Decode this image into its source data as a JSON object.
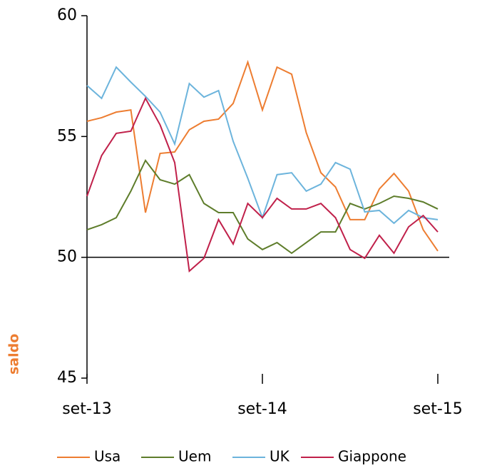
{
  "chart_data": {
    "type": "line",
    "ylabel": "saldo",
    "categories": [
      "set-13",
      null,
      null,
      null,
      null,
      null,
      null,
      null,
      null,
      null,
      null,
      null,
      "set-14",
      null,
      null,
      null,
      null,
      null,
      null,
      null,
      null,
      null,
      null,
      null,
      "set-15"
    ],
    "series": [
      {
        "name": "Usa",
        "color": "#ed7d31",
        "values": [
          55.63,
          55.78,
          56.01,
          56.1,
          51.85,
          54.3,
          54.36,
          55.28,
          55.63,
          55.72,
          56.37,
          58.08,
          56.1,
          57.87,
          57.58,
          55.16,
          53.5,
          52.91,
          51.56,
          51.56,
          52.83,
          53.47,
          52.74,
          51.14,
          50.26
        ]
      },
      {
        "name": "Uem",
        "color": "#5e7d2b",
        "values": [
          51.14,
          51.35,
          51.64,
          52.74,
          54.01,
          53.21,
          53.03,
          53.42,
          52.23,
          51.85,
          51.85,
          50.76,
          50.32,
          50.61,
          50.17,
          50.61,
          51.05,
          51.05,
          52.23,
          52.0,
          52.23,
          52.53,
          52.44,
          52.29,
          52.0
        ]
      },
      {
        "name": "UK",
        "color": "#6cb4dc",
        "values": [
          57.11,
          56.58,
          57.87,
          57.25,
          56.66,
          56.01,
          54.69,
          57.19,
          56.63,
          56.9,
          54.8,
          53.27,
          51.64,
          53.42,
          53.5,
          52.74,
          53.03,
          53.92,
          53.65,
          51.88,
          51.94,
          51.41,
          51.94,
          51.64,
          51.56
        ]
      },
      {
        "name": "Giappone",
        "color": "#c0204a",
        "values": [
          52.53,
          54.21,
          55.13,
          55.22,
          56.58,
          55.48,
          53.92,
          49.43,
          49.96,
          51.56,
          50.55,
          52.23,
          51.64,
          52.44,
          52.0,
          52.0,
          52.23,
          51.64,
          50.32,
          49.96,
          50.91,
          50.17,
          51.26,
          51.73,
          51.05
        ]
      }
    ],
    "ylim": [
      45,
      60
    ],
    "yticks": [
      45,
      50,
      55,
      60
    ],
    "x_axis_crosses": 50,
    "legend": "bottom"
  }
}
